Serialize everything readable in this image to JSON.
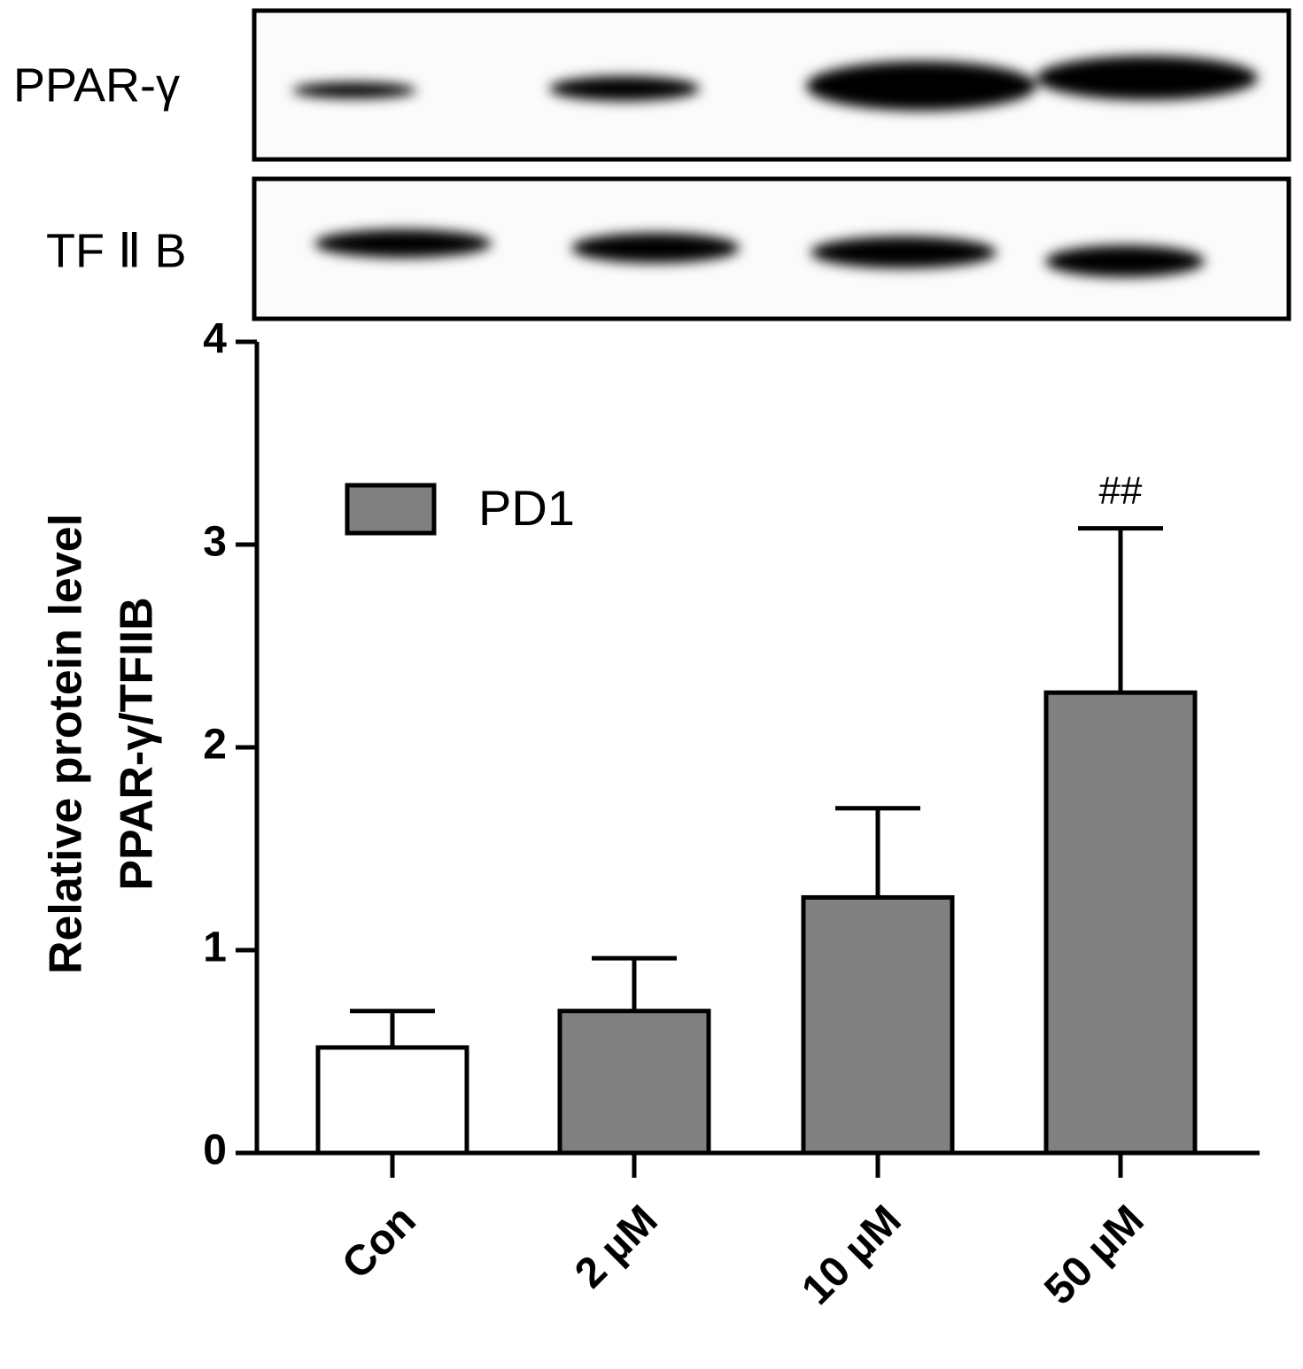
{
  "blot": {
    "labels": [
      "PPAR-γ",
      "TF Ⅱ B"
    ]
  },
  "chart_data": {
    "type": "bar",
    "y_label": [
      "Relative protein level",
      "PPAR-γ/TFIIB"
    ],
    "categories": [
      "Con",
      "2 µM",
      "10 µM",
      "50 µM"
    ],
    "values": [
      0.52,
      0.7,
      1.26,
      2.27
    ],
    "errors": [
      0.18,
      0.26,
      0.44,
      0.81
    ],
    "colors": [
      "#ffffff",
      "#808080",
      "#808080",
      "#808080"
    ],
    "legend": [
      {
        "name": "PD1",
        "color": "#808080"
      }
    ],
    "annotations": [
      {
        "text": "##",
        "category": "50 µM"
      }
    ],
    "ylim": [
      0,
      4
    ],
    "yticks": [
      0,
      1,
      2,
      3,
      4
    ],
    "grid": false
  }
}
